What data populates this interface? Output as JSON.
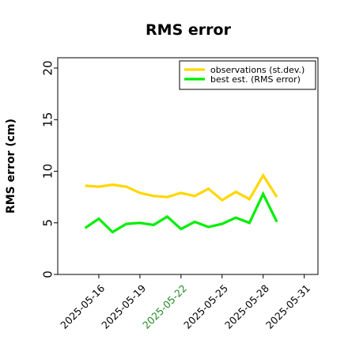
{
  "chart_data": {
    "type": "line",
    "title": "RMS error",
    "xlabel": "",
    "ylabel": "RMS error (cm)",
    "ylim": [
      0,
      21
    ],
    "yticks": [
      0,
      5,
      10,
      15,
      20
    ],
    "xlim": [
      "2025-05-13",
      "2025-06-01"
    ],
    "xticks": [
      {
        "label": "2025-05-16",
        "date": "2025-05-16",
        "color": "#000000"
      },
      {
        "label": "2025-05-19",
        "date": "2025-05-19",
        "color": "#000000"
      },
      {
        "label": "2025-05-22",
        "date": "2025-05-22",
        "color": "#228B22"
      },
      {
        "label": "2025-05-25",
        "date": "2025-05-25",
        "color": "#000000"
      },
      {
        "label": "2025-05-28",
        "date": "2025-05-28",
        "color": "#000000"
      },
      {
        "label": "2025-05-31",
        "date": "2025-05-31",
        "color": "#000000"
      }
    ],
    "x": [
      "2025-05-15",
      "2025-05-16",
      "2025-05-17",
      "2025-05-18",
      "2025-05-19",
      "2025-05-20",
      "2025-05-21",
      "2025-05-22",
      "2025-05-23",
      "2025-05-24",
      "2025-05-25",
      "2025-05-26",
      "2025-05-27",
      "2025-05-28",
      "2025-05-29"
    ],
    "series": [
      {
        "name": "observations (st.dev.)",
        "color": "#FFD700",
        "values": [
          8.6,
          8.5,
          8.7,
          8.5,
          7.9,
          7.6,
          7.5,
          7.9,
          7.6,
          8.3,
          7.2,
          8.0,
          7.3,
          9.6,
          7.5
        ]
      },
      {
        "name": "best est. (RMS error)",
        "color": "#00EE00",
        "values": [
          4.5,
          5.4,
          4.1,
          4.9,
          5.0,
          4.8,
          5.6,
          4.4,
          5.1,
          4.6,
          4.9,
          5.5,
          5.0,
          7.8,
          5.1
        ]
      }
    ],
    "grid": false,
    "legend": "top-right"
  }
}
